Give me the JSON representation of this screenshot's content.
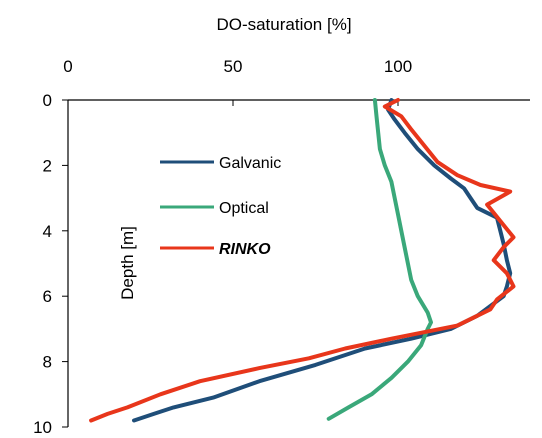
{
  "chart_data": {
    "type": "line",
    "title": "",
    "xlabel": "DO-saturation [%]",
    "ylabel": "Depth [m]",
    "xlim": [
      0,
      140
    ],
    "ylim": [
      10,
      0
    ],
    "x_ticks": [
      0,
      50,
      100
    ],
    "y_ticks": [
      0,
      2,
      4,
      6,
      8,
      10
    ],
    "x_tick_labels": [
      "0",
      "50",
      "100"
    ],
    "y_tick_labels": [
      "0",
      "2",
      "4",
      "6",
      "8",
      "10"
    ],
    "x_axis_position": "top",
    "grid": false,
    "legend_position": "center-left",
    "series": [
      {
        "name": "Galvanic",
        "color": "#1f4e79",
        "style": "normal",
        "points": [
          [
            98,
            0.0
          ],
          [
            97,
            0.3
          ],
          [
            99,
            0.6
          ],
          [
            102,
            1.0
          ],
          [
            106,
            1.5
          ],
          [
            111,
            2.0
          ],
          [
            116,
            2.4
          ],
          [
            120,
            2.7
          ],
          [
            122,
            3.0
          ],
          [
            124,
            3.3
          ],
          [
            130,
            3.6
          ],
          [
            131,
            4.0
          ],
          [
            132,
            4.4
          ],
          [
            133,
            4.9
          ],
          [
            134,
            5.3
          ],
          [
            133,
            5.7
          ],
          [
            132,
            6.0
          ],
          [
            128,
            6.3
          ],
          [
            124,
            6.6
          ],
          [
            116,
            7.0
          ],
          [
            104,
            7.3
          ],
          [
            90,
            7.6
          ],
          [
            75,
            8.1
          ],
          [
            58,
            8.6
          ],
          [
            44,
            9.1
          ],
          [
            32,
            9.4
          ],
          [
            26,
            9.6
          ],
          [
            20,
            9.8
          ]
        ]
      },
      {
        "name": "Optical",
        "color": "#3aa87a",
        "style": "normal",
        "points": [
          [
            93,
            0.0
          ],
          [
            93.5,
            0.5
          ],
          [
            94,
            1.0
          ],
          [
            94.5,
            1.5
          ],
          [
            96,
            2.0
          ],
          [
            98,
            2.5
          ],
          [
            99,
            3.0
          ],
          [
            100,
            3.5
          ],
          [
            101,
            4.0
          ],
          [
            102,
            4.5
          ],
          [
            103,
            5.0
          ],
          [
            104,
            5.5
          ],
          [
            106,
            6.0
          ],
          [
            109,
            6.5
          ],
          [
            110,
            6.8
          ],
          [
            109,
            7.0
          ],
          [
            107,
            7.5
          ],
          [
            103,
            8.0
          ],
          [
            98,
            8.5
          ],
          [
            92,
            9.0
          ],
          [
            85,
            9.4
          ],
          [
            79,
            9.75
          ]
        ]
      },
      {
        "name": "RINKO",
        "color": "#e8361b",
        "style": "bold-italic",
        "points": [
          [
            100,
            0.0
          ],
          [
            96,
            0.2
          ],
          [
            101,
            0.5
          ],
          [
            104,
            0.9
          ],
          [
            108,
            1.4
          ],
          [
            112,
            1.9
          ],
          [
            118,
            2.3
          ],
          [
            125,
            2.6
          ],
          [
            134,
            2.8
          ],
          [
            127,
            3.2
          ],
          [
            131,
            3.7
          ],
          [
            135,
            4.2
          ],
          [
            132,
            4.5
          ],
          [
            129,
            4.9
          ],
          [
            133,
            5.3
          ],
          [
            135,
            5.7
          ],
          [
            130,
            6.1
          ],
          [
            128,
            6.4
          ],
          [
            118,
            6.9
          ],
          [
            98,
            7.3
          ],
          [
            84,
            7.6
          ],
          [
            73,
            7.9
          ],
          [
            58,
            8.2
          ],
          [
            40,
            8.6
          ],
          [
            28,
            9.0
          ],
          [
            18,
            9.4
          ],
          [
            12,
            9.6
          ],
          [
            7,
            9.8
          ]
        ]
      }
    ]
  }
}
